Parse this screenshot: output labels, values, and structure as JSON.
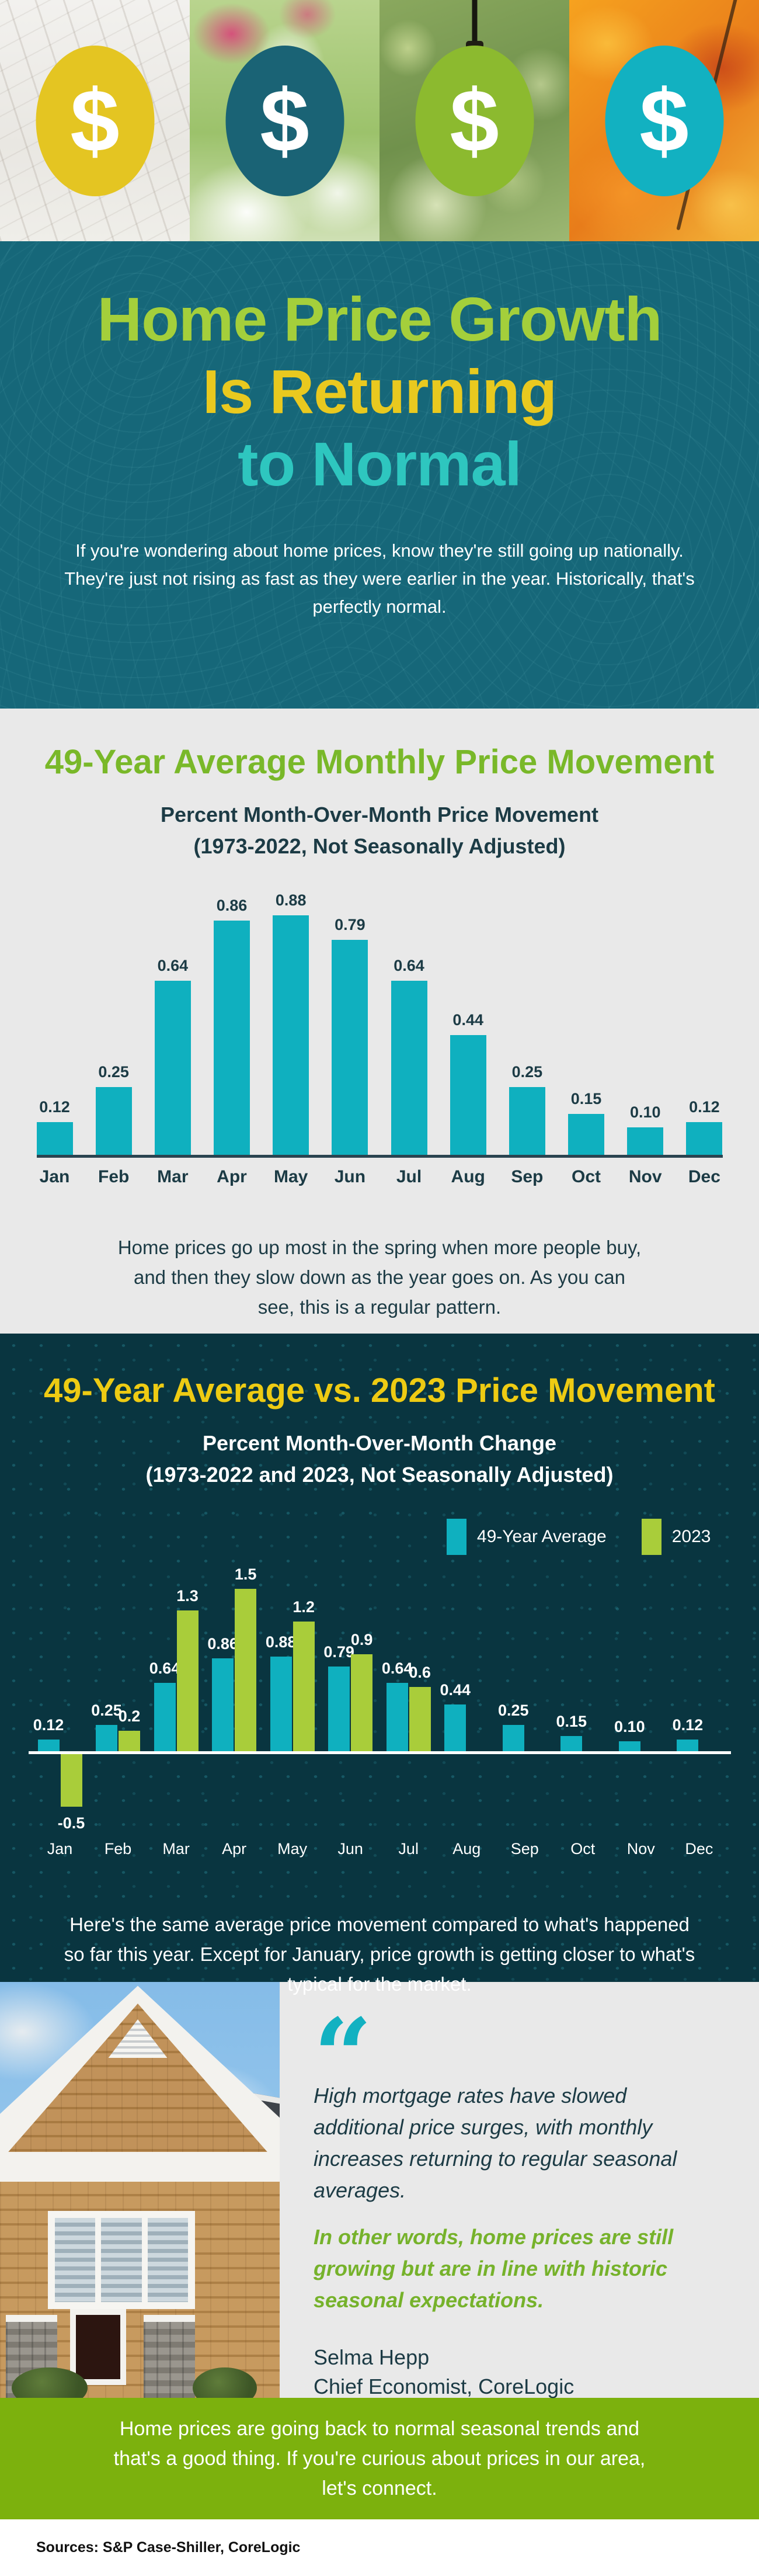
{
  "photo_strip": {
    "badges": [
      {
        "season": "winter",
        "icon": "dollar-icon",
        "symbol": "$",
        "circle_color": "#e4c522"
      },
      {
        "season": "spring",
        "icon": "dollar-icon",
        "symbol": "$",
        "circle_color": "#1a6375"
      },
      {
        "season": "summer",
        "icon": "dollar-icon",
        "symbol": "$",
        "circle_color": "#8cba2f"
      },
      {
        "season": "fall",
        "icon": "dollar-icon",
        "symbol": "$",
        "circle_color": "#12b1c1"
      }
    ]
  },
  "hero": {
    "title_line1": "Home Price Growth",
    "title_line2": "Is Returning",
    "title_line3": "to Normal",
    "intro": "If you're wondering about home prices, know they're still going up nationally. They're just not rising as fast as they were earlier in the year. Historically, that's perfectly normal."
  },
  "section1": {
    "title": "49-Year Average Monthly Price Movement",
    "subtitle_line1": "Percent Month-Over-Month Price Movement",
    "subtitle_line2": "(1973-2022, Not Seasonally Adjusted)",
    "caption": "Home prices go up most in the spring when more people buy, and then they slow down as the year goes on. As you can see, this is a regular pattern."
  },
  "section2": {
    "title": "49-Year Average vs. 2023 Price Movement",
    "subtitle_line1": "Percent Month-Over-Month Change",
    "subtitle_line2": "(1973-2022 and 2023, Not Seasonally Adjusted)",
    "legend": [
      "49-Year Average",
      "2023"
    ],
    "caption": "Here's the same average price movement compared to what's happened so far this year. Except for January, price growth is getting closer to what's typical for the market."
  },
  "quote": {
    "mark": "“",
    "icon": "quote-icon",
    "text_regular": "High mortgage rates have slowed additional price surges, with monthly increases returning to regular seasonal averages.",
    "text_emphasis": "In other words, home prices are still growing but are in line with historic seasonal expectations.",
    "attribution_name": "Selma Hepp",
    "attribution_title": "Chief Economist, CoreLogic"
  },
  "banner": {
    "text": "Home prices are going back to normal seasonal trends and that's a good thing. If you're curious about prices in our area, let's connect."
  },
  "footer": {
    "sources": "Sources: S&P Case-Shiller, CoreLogic"
  },
  "colors": {
    "hero_bg": "#166779",
    "dark_section_bg": "#093540",
    "light_section_bg": "#e9e9e9",
    "hero_title_green": "#a4cf3b",
    "hero_title_yellow": "#e9c91f",
    "hero_title_teal": "#2ec6bf",
    "section1_title_green": "#79b829",
    "section2_title_yellow": "#eecb13",
    "bar_teal": "#0fb0bf",
    "bar_green": "#a9cd3a",
    "banner_green": "#7cb10d",
    "dark_text": "#1c3b45",
    "quote_green": "#76b22b"
  },
  "chart_data": [
    {
      "type": "bar",
      "title": "49-Year Average Monthly Price Movement",
      "xlabel": "",
      "ylabel": "Percent Month-Over-Month Price Movement",
      "categories": [
        "Jan",
        "Feb",
        "Mar",
        "Apr",
        "May",
        "Jun",
        "Jul",
        "Aug",
        "Sep",
        "Oct",
        "Nov",
        "Dec"
      ],
      "values": [
        0.12,
        0.25,
        0.64,
        0.86,
        0.88,
        0.79,
        0.64,
        0.44,
        0.25,
        0.15,
        0.1,
        0.12
      ],
      "value_labels": [
        "0.12",
        "0.25",
        "0.64",
        "0.86",
        "0.88",
        "0.79",
        "0.64",
        "0.44",
        "0.25",
        "0.15",
        "0.10",
        "0.12"
      ],
      "bar_color": "#0fb0bf",
      "ylim": [
        0,
        0.88
      ],
      "grid": false,
      "legend_position": "none"
    },
    {
      "type": "bar",
      "title": "49-Year Average vs. 2023 Price Movement",
      "xlabel": "",
      "ylabel": "Percent Month-Over-Month Change",
      "categories": [
        "Jan",
        "Feb",
        "Mar",
        "Apr",
        "May",
        "Jun",
        "Jul",
        "Aug",
        "Sep",
        "Oct",
        "Nov",
        "Dec"
      ],
      "series": [
        {
          "name": "49-Year Average",
          "color": "#0fb0bf",
          "values": [
            0.12,
            0.25,
            0.64,
            0.86,
            0.88,
            0.79,
            0.64,
            0.44,
            0.25,
            0.15,
            0.1,
            0.12
          ],
          "value_labels": [
            "0.12",
            "0.25",
            "0.64",
            "0.86",
            "0.88",
            "0.79",
            "0.64",
            "0.44",
            "0.25",
            "0.15",
            "0.10",
            "0.12"
          ]
        },
        {
          "name": "2023",
          "color": "#a9cd3a",
          "values": [
            -0.5,
            0.2,
            1.3,
            1.5,
            1.2,
            0.9,
            0.6,
            null,
            null,
            null,
            null,
            null
          ],
          "value_labels": [
            "-0.5",
            "0.2",
            "1.3",
            "1.5",
            "1.2",
            "0.9",
            "0.6",
            null,
            null,
            null,
            null,
            null
          ]
        }
      ],
      "ylim": [
        -0.5,
        1.5
      ],
      "grid": false,
      "legend_position": "top-right"
    }
  ]
}
